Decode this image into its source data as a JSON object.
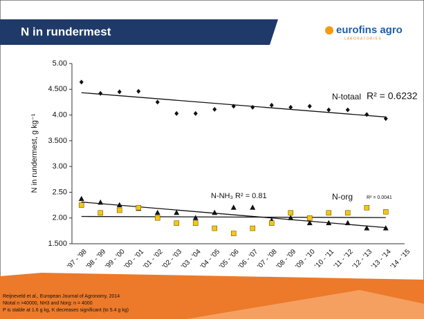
{
  "header": {
    "title": "N in rundermest",
    "logo": "eurofins agro",
    "logo_sub": "L A B O R A T O R I E S"
  },
  "chart_data": {
    "type": "scatter",
    "ylabel": "N in rundermest, g kg⁻¹",
    "categories": [
      "'97 - '98",
      "'98 - '99",
      "'99 - '00",
      "'00 - '01",
      "'01 - '02",
      "'02 - '03",
      "'03 - '04",
      "'04 - '05",
      "'05 - '06",
      "'06 - '07",
      "'07 - '08",
      "'08 - '09",
      "'09 - '10",
      "'10 - '11",
      "'11 - '12",
      "'12 - '13",
      "'13 - '14",
      "'14 - '15"
    ],
    "series": [
      {
        "name": "N-totaal",
        "color": "#111111",
        "marker": "diamond",
        "values": [
          4.64,
          4.42,
          4.45,
          4.46,
          4.25,
          4.03,
          4.03,
          4.11,
          4.17,
          4.15,
          4.19,
          4.15,
          4.17,
          4.1,
          4.1,
          4.01,
          3.93,
          null
        ]
      },
      {
        "name": "N-NH₃",
        "color": "#111111",
        "marker": "triangle",
        "values": [
          2.37,
          2.3,
          2.25,
          2.18,
          2.1,
          2.1,
          2.0,
          2.1,
          2.2,
          2.2,
          1.95,
          2.0,
          1.9,
          1.9,
          1.9,
          1.8,
          1.8,
          null
        ]
      },
      {
        "name": "N-org",
        "color": "#f5c518",
        "marker": "square",
        "values": [
          2.25,
          2.1,
          2.15,
          2.2,
          2.0,
          1.9,
          1.9,
          1.8,
          1.7,
          1.8,
          1.9,
          2.1,
          2.0,
          2.1,
          2.1,
          2.2,
          2.12,
          null
        ]
      }
    ],
    "trendline": true,
    "annotations": [
      "N-totaal",
      "R² = 0.6232",
      "N-NH₃ R² = 0.81",
      "N-org",
      "R² = 0.0041"
    ],
    "ylim": [
      1.5,
      5.0
    ],
    "yticks": [
      {
        "value": 1.5,
        "label": "1.500"
      },
      {
        "value": 2.0,
        "label": "2.00"
      },
      {
        "value": 2.5,
        "label": "2.50"
      },
      {
        "value": 3.0,
        "label": "3.00"
      },
      {
        "value": 3.5,
        "label": "3.500"
      },
      {
        "value": 4.0,
        "label": "4.00"
      },
      {
        "value": 4.5,
        "label": "4.500"
      },
      {
        "value": 5.0,
        "label": "5.00"
      }
    ]
  },
  "footer": {
    "lines": [
      "Reijneveld et al., European Journal of Agronomy, 2014",
      "Ntotal n >40000, NH3 and Norg: n = 4000",
      "P is stable at 1.6 g kg, K decreases significant (to 5.4 g kg)"
    ]
  }
}
